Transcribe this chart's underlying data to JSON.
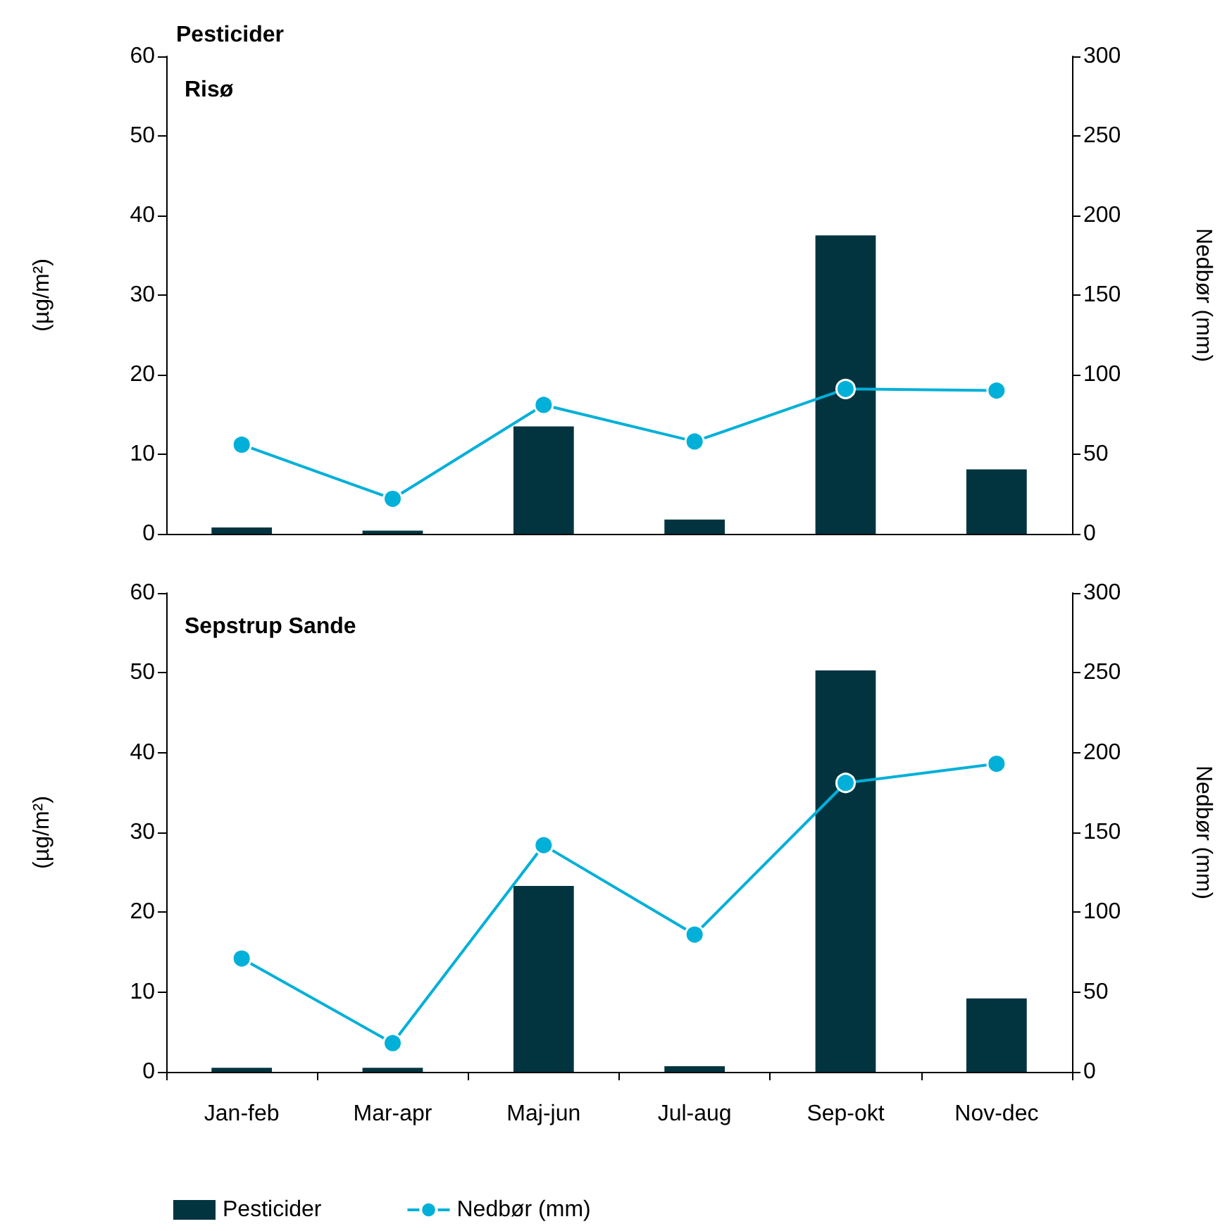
{
  "chart_data": [
    {
      "type": "bar",
      "title": "Pesticider",
      "subtitle": "Risø",
      "ylabel": "(µg/m²)",
      "y2label": "Nedbør (mm)",
      "categories": [
        null,
        null,
        null,
        null,
        null,
        null
      ],
      "series": [
        {
          "color": "#023440",
          "values": [
            0.8,
            0.4,
            13.5,
            1.8,
            37.5,
            8.1
          ]
        },
        {
          "type": "line",
          "axis": "y2",
          "color": "#00b0d8",
          "marker": "circle",
          "values": [
            56,
            22,
            81,
            58,
            91,
            90
          ]
        }
      ],
      "ylim": [
        0,
        60
      ],
      "yticks": [
        0,
        10,
        20,
        30,
        40,
        50,
        60
      ],
      "y2lim": [
        0,
        300
      ],
      "y2ticks": [
        0,
        50,
        100,
        150,
        200,
        250,
        300
      ],
      "grid": false,
      "legend": false,
      "tick_labels": "y"
    },
    {
      "type": "bar",
      "subtitle": "Sepstrup Sande",
      "ylabel": "(µg/m²)",
      "y2label": "Nedbør (mm)",
      "categories": [
        "Jan-feb",
        "Mar-apr",
        "Maj-jun",
        "Jul-aug",
        "Sep-okt",
        "Nov-dec"
      ],
      "series": [
        {
          "name": "Pesticider",
          "color": "#023440",
          "values": [
            0.5,
            0.5,
            23.3,
            0.7,
            50.3,
            9.2
          ]
        },
        {
          "type": "line",
          "axis": "y2",
          "name": "Nedbør (mm)",
          "color": "#00b0d8",
          "marker": "circle",
          "values": [
            71,
            18,
            142,
            86,
            181,
            193
          ]
        }
      ],
      "ylim": [
        0,
        60
      ],
      "yticks": [
        0,
        10,
        20,
        30,
        40,
        50,
        60
      ],
      "y2lim": [
        0,
        300
      ],
      "y2ticks": [
        0,
        50,
        100,
        150,
        200,
        250,
        300
      ],
      "grid": false,
      "legend": "bottom"
    }
  ]
}
